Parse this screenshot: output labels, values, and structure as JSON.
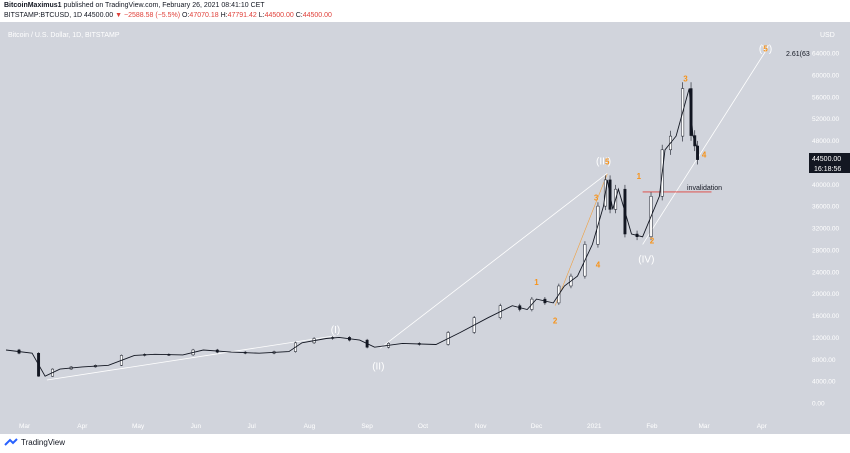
{
  "header": {
    "author": "BitcoinMaximus1",
    "published_text": "published on TradingView.com, February 26, 2021 08:41:10 CET",
    "symbol": "BITSTAMP:BTCUSD, 1D",
    "price": "44500.00",
    "change": "▼ −2588.58 (−5.5%)",
    "o_label": "O:",
    "o_value": "47070.18",
    "h_label": "H:",
    "h_value": "47791.42",
    "l_label": "L:",
    "l_value": "44500.00",
    "c_label": "C:",
    "c_value": "44500.00"
  },
  "footer": {
    "brand": "TradingView"
  },
  "colors": {
    "background": "#d1d4dc",
    "candle": "#131722",
    "wave_label": "#f7931a",
    "major_label": "#ffffff",
    "invalidation": "#e0403a",
    "last_price": "#131722"
  },
  "chart_data": {
    "type": "candlestick",
    "title": "Bitcoin / U.S. Dollar, 1D, BITSTAMP",
    "currency_label": "USD",
    "y_ticks": [
      "64000.00",
      "60000.00",
      "56000.00",
      "52000.00",
      "48000.00",
      "40000.00",
      "36000.00",
      "32000.00",
      "28000.00",
      "24000.00",
      "20000.00",
      "16000.00",
      "12000.00",
      "8000.00",
      "4000.00",
      "0.00"
    ],
    "ylim": [
      0,
      66000
    ],
    "x_ticks": [
      "Mar",
      "Apr",
      "May",
      "Jun",
      "Jul",
      "Aug",
      "Sep",
      "Oct",
      "Nov",
      "Dec",
      "2021",
      "Feb",
      "Mar",
      "Apr"
    ],
    "last_price_label": "44500.00",
    "countdown_label": "16:18:56",
    "fib_label": "2.61(63",
    "invalidation_label": "invalidation",
    "invalidation_level": 38600,
    "price_series": [
      {
        "date": "2020-02-20",
        "close": 9700
      },
      {
        "date": "2020-03-05",
        "close": 9100
      },
      {
        "date": "2020-03-12",
        "close": 4900
      },
      {
        "date": "2020-03-20",
        "close": 6200
      },
      {
        "date": "2020-04-01",
        "close": 6600
      },
      {
        "date": "2020-04-15",
        "close": 6900
      },
      {
        "date": "2020-04-29",
        "close": 8700
      },
      {
        "date": "2020-05-10",
        "close": 8900
      },
      {
        "date": "2020-05-25",
        "close": 8800
      },
      {
        "date": "2020-06-05",
        "close": 9700
      },
      {
        "date": "2020-06-20",
        "close": 9300
      },
      {
        "date": "2020-07-05",
        "close": 9100
      },
      {
        "date": "2020-07-21",
        "close": 9400
      },
      {
        "date": "2020-07-28",
        "close": 11000
      },
      {
        "date": "2020-08-10",
        "close": 11800
      },
      {
        "date": "2020-08-17",
        "close": 12000
      },
      {
        "date": "2020-08-28",
        "close": 11500
      },
      {
        "date": "2020-09-05",
        "close": 10200
      },
      {
        "date": "2020-09-20",
        "close": 10900
      },
      {
        "date": "2020-10-08",
        "close": 10700
      },
      {
        "date": "2020-10-21",
        "close": 12900
      },
      {
        "date": "2020-11-05",
        "close": 15600
      },
      {
        "date": "2020-11-18",
        "close": 17800
      },
      {
        "date": "2020-11-26",
        "close": 17100
      },
      {
        "date": "2020-12-01",
        "close": 19000
      },
      {
        "date": "2020-12-10",
        "close": 18300
      },
      {
        "date": "2020-12-16",
        "close": 21400
      },
      {
        "date": "2020-12-23",
        "close": 23200
      },
      {
        "date": "2020-12-31",
        "close": 29000
      },
      {
        "date": "2021-01-06",
        "close": 36000
      },
      {
        "date": "2021-01-08",
        "close": 40800
      },
      {
        "date": "2021-01-11",
        "close": 35400
      },
      {
        "date": "2021-01-14",
        "close": 39100
      },
      {
        "date": "2021-01-21",
        "close": 30900
      },
      {
        "date": "2021-01-27",
        "close": 30400
      },
      {
        "date": "2021-02-05",
        "close": 37800
      },
      {
        "date": "2021-02-08",
        "close": 46300
      },
      {
        "date": "2021-02-14",
        "close": 48800
      },
      {
        "date": "2021-02-21",
        "close": 57500
      },
      {
        "date": "2021-02-23",
        "close": 48900
      },
      {
        "date": "2021-02-25",
        "close": 47000
      },
      {
        "date": "2021-02-26",
        "close": 44500
      }
    ],
    "annotations": [
      {
        "text": "(I)",
        "date": "2020-08-15",
        "price": 12800,
        "kind": "major"
      },
      {
        "text": "(II)",
        "date": "2020-09-07",
        "price": 6100,
        "kind": "major"
      },
      {
        "text": "(III)",
        "date": "2021-01-06",
        "price": 43600,
        "kind": "major"
      },
      {
        "text": "5",
        "date": "2021-01-08",
        "price": 43600,
        "kind": "wave"
      },
      {
        "text": "(IV)",
        "date": "2021-01-29",
        "price": 25700,
        "kind": "major"
      },
      {
        "text": "(V)",
        "date": "2021-04-03",
        "price": 64200,
        "kind": "major"
      },
      {
        "text": "5",
        "date": "2021-04-03",
        "price": 64300,
        "kind": "wave"
      },
      {
        "text": "1",
        "date": "2020-12-01",
        "price": 21600,
        "kind": "wave"
      },
      {
        "text": "2",
        "date": "2020-12-11",
        "price": 14500,
        "kind": "wave"
      },
      {
        "text": "3",
        "date": "2021-01-02",
        "price": 37000,
        "kind": "wave"
      },
      {
        "text": "4",
        "date": "2021-01-03",
        "price": 24800,
        "kind": "wave"
      },
      {
        "text": "1",
        "date": "2021-01-25",
        "price": 41000,
        "kind": "wave"
      },
      {
        "text": "2",
        "date": "2021-02-01",
        "price": 29200,
        "kind": "wave"
      },
      {
        "text": "3",
        "date": "2021-02-19",
        "price": 58800,
        "kind": "wave"
      },
      {
        "text": "4",
        "date": "2021-03-01",
        "price": 44900,
        "kind": "wave"
      }
    ]
  }
}
